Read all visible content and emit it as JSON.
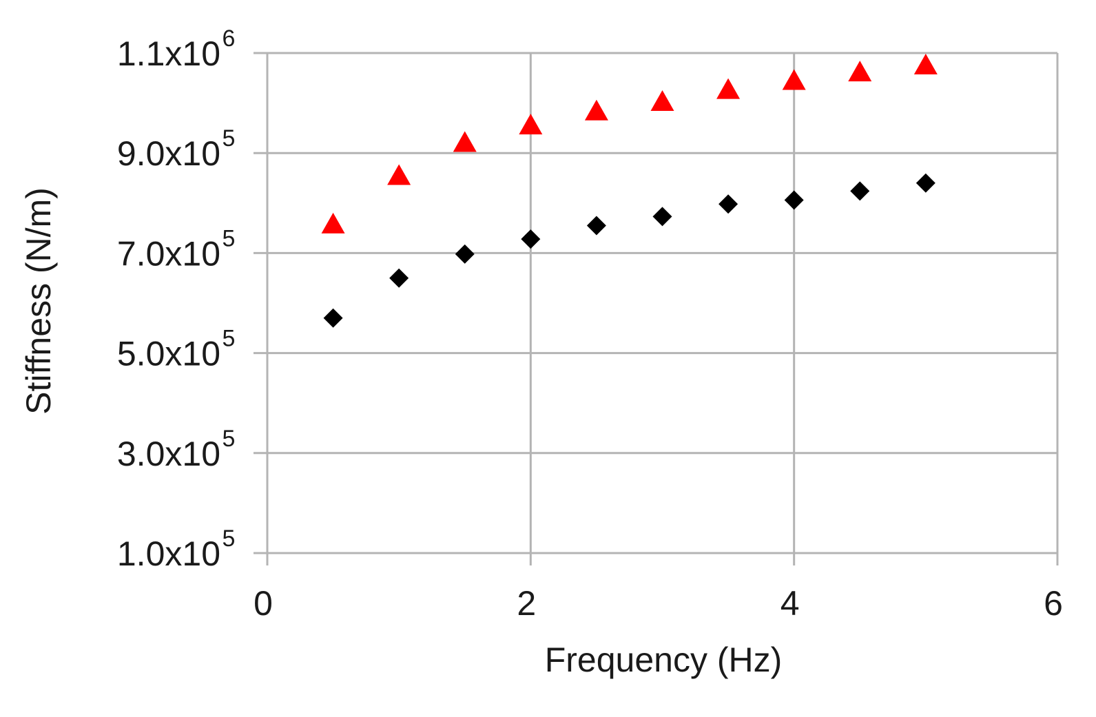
{
  "chart_data": {
    "type": "scatter",
    "title": "",
    "xlabel": "Frequency (Hz)",
    "ylabel": "Stiffness (N/m)",
    "xlim": [
      0,
      6
    ],
    "ylim": [
      100000,
      1100000
    ],
    "x_ticks": [
      {
        "value": 0,
        "label": "0"
      },
      {
        "value": 2,
        "label": "2"
      },
      {
        "value": 4,
        "label": "4"
      },
      {
        "value": 6,
        "label": "6"
      }
    ],
    "y_ticks": [
      {
        "value": 100000,
        "mantissa": "1.0x10",
        "exponent": "5"
      },
      {
        "value": 300000,
        "mantissa": "3.0x10",
        "exponent": "5"
      },
      {
        "value": 500000,
        "mantissa": "5.0x10",
        "exponent": "5"
      },
      {
        "value": 700000,
        "mantissa": "7.0x10",
        "exponent": "5"
      },
      {
        "value": 900000,
        "mantissa": "9.0x10",
        "exponent": "5"
      },
      {
        "value": 1100000,
        "mantissa": "1.1x10",
        "exponent": "6"
      }
    ],
    "grid": true,
    "legend": "none",
    "series": [
      {
        "marker": "triangle",
        "color": "#ff0000",
        "x": [
          0.5,
          1.0,
          1.5,
          2.0,
          2.5,
          3.0,
          3.5,
          4.0,
          4.5,
          5.0
        ],
        "y": [
          755000,
          852000,
          918000,
          953000,
          981000,
          1000000,
          1024000,
          1042000,
          1059000,
          1073000
        ]
      },
      {
        "marker": "diamond",
        "color": "#000000",
        "x": [
          0.5,
          1.0,
          1.5,
          2.0,
          2.5,
          3.0,
          3.5,
          4.0,
          4.5,
          5.0
        ],
        "y": [
          570000,
          650000,
          698000,
          728000,
          755000,
          773000,
          798000,
          806000,
          824000,
          840000
        ]
      }
    ]
  }
}
